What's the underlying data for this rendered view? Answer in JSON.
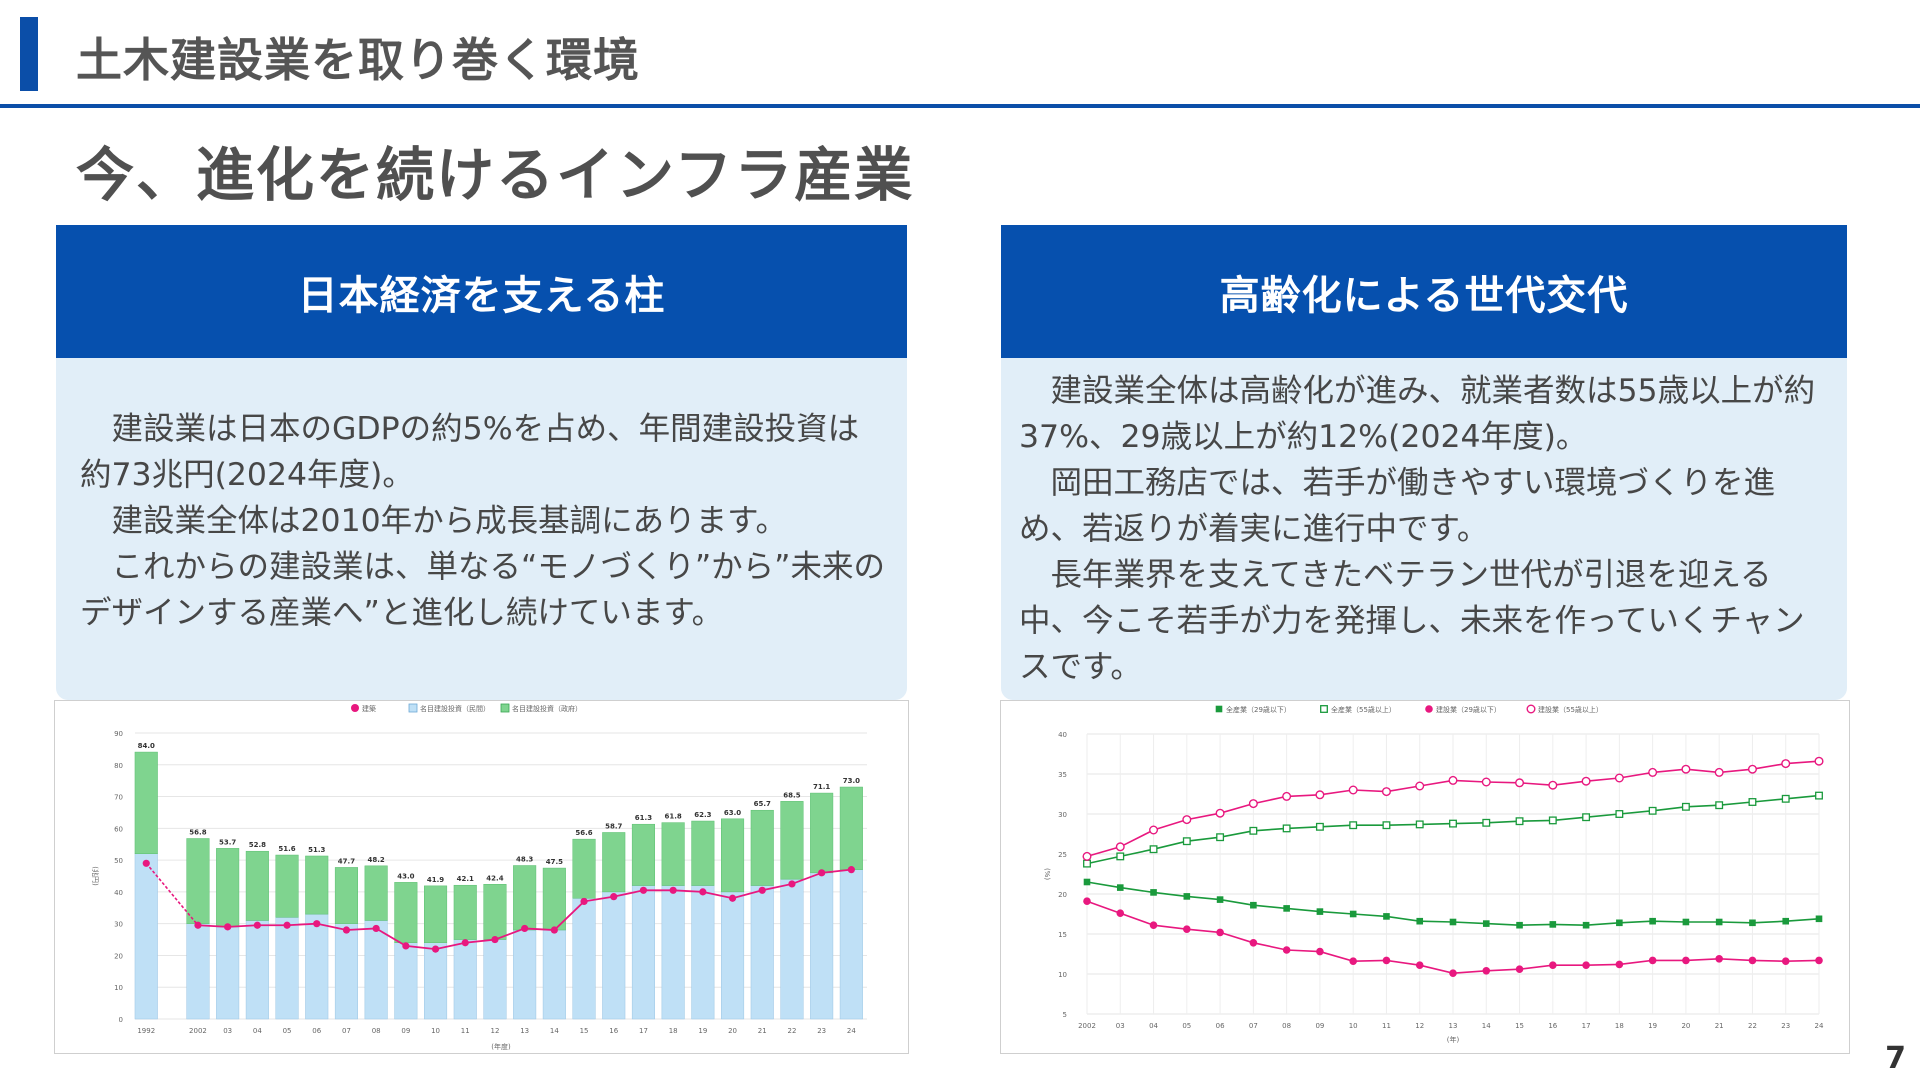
{
  "header": {
    "title": "土木建設業を取り巻く環境"
  },
  "main": {
    "heading": "今、進化を続けるインフラ産業"
  },
  "left_panel": {
    "title": "日本経済を支える柱",
    "paragraphs": [
      "建設業は日本のGDPの約5%を占め、年間建設投資は約73兆円(2024年度)。",
      "建設業全体は2010年から成長基調にあります。",
      "これからの建設業は、単なる“モノづくり”から”未来のデザインする産業へ”と進化し続けています。"
    ]
  },
  "right_panel": {
    "title": "高齢化による世代交代",
    "paragraphs": [
      "建設業全体は高齢化が進み、就業者数は55歳以上が約37%、29歳以上が約12%(2024年度)。",
      "岡田工務店では、若手が働きやすい環境づくりを進め、若返りが着実に進行中です。",
      "長年業界を支えてきたベテラン世代が引退を迎える中、今こそ若手が力を発揮し、未来を作っていくチャンスです。"
    ]
  },
  "page_number": "7",
  "chart_data": [
    {
      "type": "bar",
      "legend": [
        "建築",
        "名目建設投資（民間）",
        "名目建設投資（政府）"
      ],
      "legend_position": "top",
      "ylabel": "(兆円)",
      "xlabel": "(年度)",
      "ylim": [
        0,
        90
      ],
      "yticks": [
        0,
        10,
        20,
        30,
        40,
        50,
        60,
        70,
        80,
        90
      ],
      "categories": [
        "1992",
        "2002",
        "03",
        "04",
        "05",
        "06",
        "07",
        "08",
        "09",
        "10",
        "11",
        "12",
        "13",
        "14",
        "15",
        "16",
        "17",
        "18",
        "19",
        "20",
        "21",
        "22",
        "23",
        "24"
      ],
      "totals": [
        84.0,
        56.8,
        53.7,
        52.8,
        51.6,
        51.3,
        47.7,
        48.2,
        43.0,
        41.9,
        42.1,
        42.4,
        48.3,
        47.5,
        56.6,
        58.7,
        61.3,
        61.8,
        62.3,
        63.0,
        65.7,
        68.5,
        71.1,
        73.0
      ],
      "total_labels": [
        "84.0",
        "56.8",
        "53.7",
        "52.8",
        "51.6",
        "51.3",
        "47.7",
        "48.2",
        "43.0",
        "41.9",
        "42.1",
        "42.4",
        "48.3",
        "47.5",
        "56.6",
        "58.7",
        "61.3",
        "61.8",
        "62.3",
        "63.0",
        "65.7",
        "68.5",
        "71.1",
        "73.0"
      ],
      "series": [
        {
          "name": "名目建設投資（民間）",
          "kind": "bar",
          "color": "#bfe0f6",
          "values": [
            52,
            30,
            29,
            31,
            32,
            33,
            30,
            31,
            24,
            24,
            25,
            25,
            28,
            28,
            38,
            40,
            42,
            42,
            42,
            40,
            42,
            44,
            46,
            47
          ]
        },
        {
          "name": "名目建設投資（政府）",
          "kind": "bar",
          "color": "#7fd48f",
          "values": [
            32,
            26.8,
            24.7,
            21.8,
            19.6,
            18.3,
            17.7,
            17.2,
            19.0,
            17.9,
            17.1,
            17.4,
            20.3,
            19.5,
            18.6,
            18.7,
            19.3,
            19.8,
            20.3,
            23.0,
            23.7,
            24.5,
            25.1,
            26.0
          ]
        },
        {
          "name": "建築",
          "kind": "line",
          "color": "#e8187f",
          "values": [
            49,
            29.5,
            29,
            29.5,
            29.5,
            30,
            28,
            28.5,
            23,
            22,
            24,
            25,
            28.5,
            28,
            37,
            38.5,
            40.5,
            40.5,
            40,
            38,
            40.5,
            42.5,
            46,
            47
          ]
        }
      ]
    },
    {
      "type": "line",
      "legend": [
        "全産業（29歳以下）",
        "全産業（55歳以上）",
        "建設業（29歳以下）",
        "建設業（55歳以上）"
      ],
      "legend_position": "top",
      "ylabel": "(%)",
      "xlabel": "(年)",
      "ylim": [
        5,
        40
      ],
      "yticks": [
        5,
        10,
        15,
        20,
        25,
        30,
        35,
        40
      ],
      "categories": [
        "2002",
        "03",
        "04",
        "05",
        "06",
        "07",
        "08",
        "09",
        "10",
        "11",
        "12",
        "13",
        "14",
        "15",
        "16",
        "17",
        "18",
        "19",
        "20",
        "21",
        "22",
        "23",
        "24"
      ],
      "series": [
        {
          "name": "全産業（29歳以下）",
          "color": "#1a9a3c",
          "marker": "filled-square",
          "values": [
            21.5,
            20.8,
            20.2,
            19.7,
            19.3,
            18.6,
            18.2,
            17.8,
            17.5,
            17.2,
            16.6,
            16.5,
            16.3,
            16.1,
            16.2,
            16.1,
            16.4,
            16.6,
            16.5,
            16.5,
            16.4,
            16.6,
            16.9
          ]
        },
        {
          "name": "全産業（55歳以上）",
          "color": "#1a9a3c",
          "marker": "hollow-square",
          "values": [
            23.8,
            24.7,
            25.6,
            26.6,
            27.1,
            27.9,
            28.2,
            28.4,
            28.6,
            28.6,
            28.7,
            28.8,
            28.9,
            29.1,
            29.2,
            29.6,
            30.0,
            30.4,
            30.9,
            31.1,
            31.5,
            31.9,
            32.3
          ]
        },
        {
          "name": "建設業（29歳以下）",
          "color": "#e8187f",
          "marker": "filled-circle",
          "values": [
            19.1,
            17.6,
            16.1,
            15.6,
            15.2,
            13.9,
            13.0,
            12.8,
            11.6,
            11.7,
            11.1,
            10.1,
            10.4,
            10.6,
            11.1,
            11.1,
            11.2,
            11.7,
            11.7,
            11.9,
            11.7,
            11.6,
            11.7
          ]
        },
        {
          "name": "建設業（55歳以上）",
          "color": "#e8187f",
          "marker": "hollow-circle",
          "values": [
            24.7,
            25.9,
            28.0,
            29.3,
            30.1,
            31.3,
            32.2,
            32.4,
            33.0,
            32.8,
            33.5,
            34.2,
            34.0,
            33.9,
            33.6,
            34.1,
            34.5,
            35.2,
            35.6,
            35.2,
            35.6,
            36.3,
            36.6
          ]
        }
      ]
    }
  ]
}
